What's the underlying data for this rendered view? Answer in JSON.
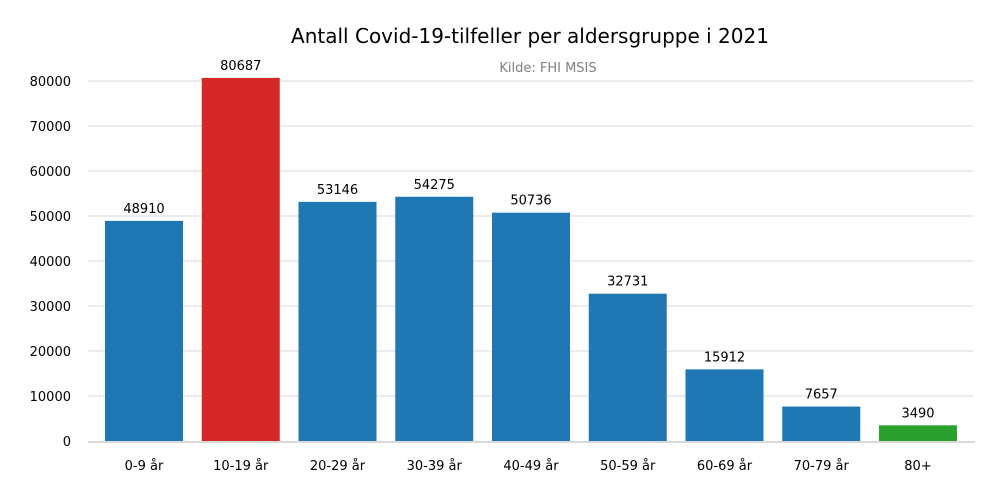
{
  "chart_data": {
    "type": "bar",
    "title": "Antall Covid-19-tilfeller per aldersgruppe i 2021",
    "subtitle": "Kilde: FHI MSIS",
    "xlabel": "",
    "ylabel": "",
    "categories": [
      "0-9 år",
      "10-19 år",
      "20-29 år",
      "30-39 år",
      "40-49 år",
      "50-59 år",
      "60-69 år",
      "70-79 år",
      "80+"
    ],
    "values": [
      48910,
      80687,
      53146,
      54275,
      50736,
      32731,
      15912,
      7657,
      3490
    ],
    "colors": [
      "#1f77b4",
      "#d62728",
      "#1f77b4",
      "#1f77b4",
      "#1f77b4",
      "#1f77b4",
      "#1f77b4",
      "#1f77b4",
      "#2ca02c"
    ],
    "ylim": [
      0,
      80000
    ],
    "yticks": [
      0,
      10000,
      20000,
      30000,
      40000,
      50000,
      60000,
      70000,
      80000
    ],
    "grid": true,
    "legend": "none"
  }
}
